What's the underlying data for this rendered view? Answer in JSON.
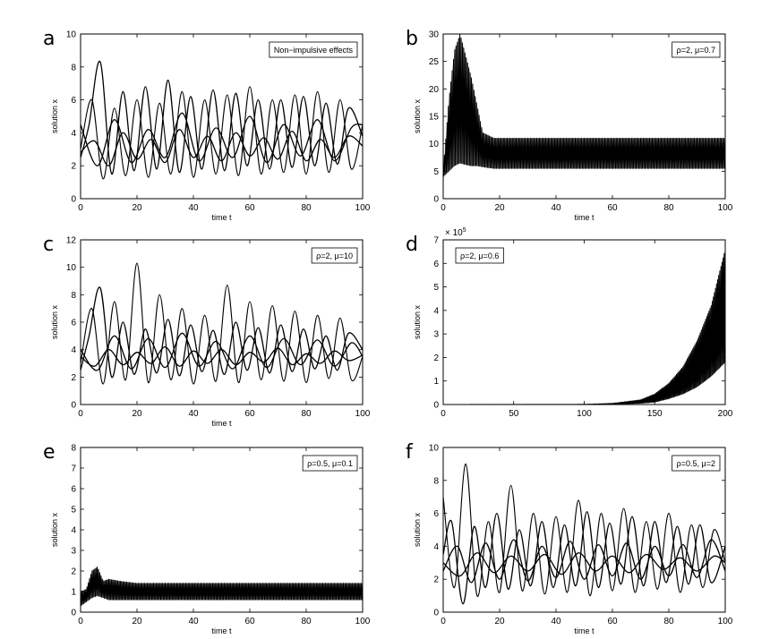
{
  "chart_data": [
    {
      "panel": "a",
      "type": "line",
      "xlabel": "time t",
      "ylabel": "solution x",
      "xlim": [
        0,
        100
      ],
      "ylim": [
        0,
        10
      ],
      "xticks": [
        0,
        20,
        40,
        60,
        80,
        100
      ],
      "yticks": [
        0,
        2,
        4,
        6,
        8,
        10
      ],
      "legend": "Non−impulsive effects",
      "legend_position": "top-right",
      "series": [
        {
          "x": [
            0,
            4,
            8,
            12,
            16,
            20,
            24,
            28,
            32,
            36,
            40,
            44,
            48,
            52,
            56,
            60,
            64,
            68,
            72,
            76,
            80,
            84,
            88,
            92,
            96,
            100
          ],
          "values": [
            3,
            6,
            1.2,
            5.5,
            1.4,
            6,
            1.3,
            5.8,
            1.5,
            6.5,
            1.3,
            6,
            1.5,
            6.3,
            1.4,
            6.8,
            1.5,
            6,
            1.6,
            6.3,
            1.5,
            6.5,
            1.6,
            6,
            1.8,
            4.5
          ]
        },
        {
          "x": [
            0,
            3,
            7,
            11,
            15,
            19,
            23,
            27,
            31,
            35,
            39,
            43,
            47,
            51,
            55,
            59,
            63,
            67,
            71,
            75,
            79,
            83,
            87,
            91,
            95,
            100
          ],
          "values": [
            2.5,
            4.5,
            8.3,
            1.5,
            6.5,
            1.7,
            6.8,
            1.8,
            7.2,
            1.6,
            6.2,
            1.8,
            6.6,
            1.7,
            6.4,
            2,
            6,
            1.8,
            6,
            1.9,
            6.2,
            2,
            5.8,
            2.1,
            5.5,
            3.8
          ]
        },
        {
          "x": [
            0,
            6,
            12,
            18,
            24,
            30,
            36,
            42,
            48,
            54,
            60,
            66,
            72,
            78,
            84,
            90,
            96,
            100
          ],
          "values": [
            4.5,
            2,
            4.8,
            2.2,
            4.2,
            2.5,
            5.2,
            2.3,
            4.3,
            2.5,
            5,
            2.2,
            4.5,
            2.6,
            4.8,
            2.3,
            4.3,
            4.5
          ]
        },
        {
          "x": [
            0,
            5,
            10,
            15,
            20,
            25,
            30,
            35,
            40,
            45,
            50,
            55,
            60,
            65,
            70,
            75,
            80,
            85,
            90,
            95,
            100
          ],
          "values": [
            2.8,
            3.5,
            2,
            4,
            2.4,
            3.6,
            2.2,
            4.2,
            2.5,
            3.8,
            2.3,
            4,
            2.6,
            3.7,
            2.4,
            4.1,
            2.3,
            3.6,
            2.5,
            3.8,
            3.2
          ]
        }
      ]
    },
    {
      "panel": "b",
      "type": "line",
      "xlabel": "time t",
      "ylabel": "solution x",
      "xlim": [
        0,
        100
      ],
      "ylim": [
        0,
        30
      ],
      "xticks": [
        0,
        20,
        40,
        60,
        80,
        100
      ],
      "yticks": [
        0,
        5,
        10,
        15,
        20,
        25,
        30
      ],
      "legend": "ρ=2,  μ=0.7",
      "legend_position": "top-right",
      "series": [
        {
          "x": [
            0,
            2,
            4,
            6,
            8,
            10,
            12,
            14,
            18,
            25,
            40,
            60,
            80,
            100
          ],
          "values": [
            5,
            18,
            27,
            30,
            26,
            22,
            17,
            12,
            11,
            11,
            11,
            11,
            11,
            11
          ]
        },
        {
          "x": [
            0,
            2,
            4,
            6,
            8,
            10,
            12,
            14,
            18,
            25,
            40,
            60,
            80,
            100
          ],
          "values": [
            4,
            5,
            6,
            6.5,
            6.2,
            6,
            6,
            5.8,
            5.5,
            5.5,
            5.5,
            5.5,
            5.5,
            5.5
          ]
        }
      ]
    },
    {
      "panel": "c",
      "type": "line",
      "xlabel": "time t",
      "ylabel": "solution x",
      "xlim": [
        0,
        100
      ],
      "ylim": [
        0,
        12
      ],
      "xticks": [
        0,
        20,
        40,
        60,
        80,
        100
      ],
      "yticks": [
        0,
        2,
        4,
        6,
        8,
        10,
        12
      ],
      "legend": "ρ=2,  μ=10",
      "legend_position": "top-right",
      "series": [
        {
          "x": [
            0,
            4,
            8,
            12,
            16,
            20,
            24,
            28,
            32,
            36,
            40,
            44,
            48,
            52,
            56,
            60,
            64,
            68,
            72,
            76,
            80,
            84,
            88,
            92,
            96,
            100
          ],
          "values": [
            3,
            7,
            1.5,
            7.5,
            1.8,
            10.3,
            1.6,
            8,
            1.8,
            7,
            1.5,
            6.5,
            1.7,
            8.7,
            1.6,
            7.5,
            1.8,
            7.2,
            1.7,
            6.8,
            1.6,
            6.5,
            1.9,
            6.3,
            1.8,
            3.5
          ]
        },
        {
          "x": [
            0,
            3,
            7,
            11,
            15,
            19,
            23,
            27,
            31,
            35,
            39,
            43,
            47,
            51,
            55,
            59,
            63,
            67,
            71,
            75,
            79,
            83,
            87,
            91,
            95,
            100
          ],
          "values": [
            2.5,
            5,
            8.5,
            2,
            6,
            2.2,
            5.5,
            2.3,
            6.2,
            2.1,
            5.8,
            2.4,
            5.4,
            2.2,
            6,
            2.5,
            5.6,
            2.3,
            5.8,
            2.4,
            5.5,
            2.6,
            5,
            2.5,
            5.2,
            4
          ]
        },
        {
          "x": [
            0,
            6,
            12,
            18,
            24,
            30,
            36,
            42,
            48,
            54,
            60,
            66,
            72,
            78,
            84,
            90,
            96,
            100
          ],
          "values": [
            4,
            2.5,
            5,
            2.6,
            4.8,
            2.7,
            5.2,
            2.8,
            4.6,
            2.6,
            5,
            2.7,
            4.8,
            2.9,
            4.7,
            2.8,
            4.5,
            3.5
          ]
        },
        {
          "x": [
            0,
            5,
            10,
            15,
            20,
            25,
            30,
            35,
            40,
            45,
            50,
            55,
            60,
            65,
            70,
            75,
            80,
            85,
            90,
            95,
            100
          ],
          "values": [
            3.5,
            2.8,
            4,
            2.9,
            3.8,
            3,
            4.2,
            2.8,
            3.9,
            3,
            4,
            2.9,
            3.8,
            3.1,
            4.1,
            2.9,
            3.7,
            3,
            3.9,
            3.2,
            3.6
          ]
        }
      ]
    },
    {
      "panel": "d",
      "type": "line",
      "xlabel": "",
      "ylabel": "solution x",
      "y_multiplier": "× 10",
      "y_multiplier_exp": "5",
      "xlim": [
        0,
        200
      ],
      "ylim": [
        0,
        7
      ],
      "xticks": [
        0,
        50,
        100,
        150,
        200
      ],
      "yticks": [
        0,
        1,
        2,
        3,
        4,
        5,
        6,
        7
      ],
      "legend": "ρ=2,  μ=0.6",
      "legend_position": "top-left",
      "series": [
        {
          "x": [
            0,
            100,
            120,
            140,
            150,
            160,
            170,
            180,
            190,
            200
          ],
          "values": [
            0,
            0.01,
            0.05,
            0.2,
            0.45,
            0.9,
            1.6,
            2.7,
            4.2,
            6.6
          ]
        },
        {
          "x": [
            0,
            100,
            120,
            140,
            150,
            160,
            170,
            180,
            190,
            200
          ],
          "values": [
            0,
            0,
            0.01,
            0.05,
            0.1,
            0.25,
            0.45,
            0.75,
            1.2,
            1.8
          ]
        }
      ]
    },
    {
      "panel": "e",
      "type": "line",
      "xlabel": "time t",
      "ylabel": "solution x",
      "xlim": [
        0,
        100
      ],
      "ylim": [
        0,
        8
      ],
      "xticks": [
        0,
        20,
        40,
        60,
        80,
        100
      ],
      "yticks": [
        0,
        1,
        2,
        3,
        4,
        5,
        6,
        7,
        8
      ],
      "legend": "ρ=0.5,  μ=0.1",
      "legend_position": "top-right",
      "series": [
        {
          "x": [
            0,
            2,
            4,
            6,
            8,
            10,
            14,
            20,
            30,
            40,
            50,
            60,
            70,
            80,
            90,
            100
          ],
          "values": [
            1,
            1.1,
            2,
            2.2,
            1.5,
            1.6,
            1.5,
            1.4,
            1.4,
            1.4,
            1.4,
            1.4,
            1.4,
            1.4,
            1.4,
            1.4
          ]
        },
        {
          "x": [
            0,
            2,
            4,
            6,
            8,
            10,
            14,
            20,
            30,
            40,
            50,
            60,
            70,
            80,
            90,
            100
          ],
          "values": [
            0.3,
            0.5,
            0.7,
            0.8,
            0.7,
            0.6,
            0.6,
            0.6,
            0.6,
            0.6,
            0.6,
            0.6,
            0.6,
            0.6,
            0.6,
            0.6
          ]
        }
      ]
    },
    {
      "panel": "f",
      "type": "line",
      "xlabel": "time t",
      "ylabel": "solution x",
      "xlim": [
        0,
        100
      ],
      "ylim": [
        0,
        10
      ],
      "xticks": [
        0,
        20,
        40,
        60,
        80,
        100
      ],
      "yticks": [
        0,
        2,
        4,
        6,
        8,
        10
      ],
      "legend": "ρ=0.5,  μ=2",
      "legend_position": "top-right",
      "series": [
        {
          "x": [
            0,
            4,
            8,
            12,
            16,
            20,
            24,
            28,
            32,
            36,
            40,
            44,
            48,
            52,
            56,
            60,
            64,
            68,
            72,
            76,
            80,
            84,
            88,
            92,
            96,
            100
          ],
          "values": [
            7,
            1.5,
            9,
            1,
            5.5,
            1.2,
            7.7,
            1.3,
            6,
            1.1,
            5.8,
            1.2,
            6.8,
            1,
            6,
            1.3,
            6.3,
            1.2,
            5.5,
            1.4,
            6,
            1.2,
            5.3,
            1.5,
            5,
            3
          ]
        },
        {
          "x": [
            0,
            3,
            7,
            11,
            15,
            19,
            23,
            27,
            31,
            35,
            39,
            43,
            47,
            51,
            55,
            59,
            63,
            67,
            71,
            75,
            79,
            83,
            87,
            91,
            95,
            100
          ],
          "values": [
            3.5,
            5.5,
            0.5,
            5.2,
            1.5,
            6,
            1.4,
            5,
            1.6,
            5.5,
            1.5,
            5.3,
            1.6,
            6.1,
            1.5,
            5.4,
            1.7,
            5.8,
            1.6,
            5.5,
            1.8,
            5.2,
            1.7,
            5.3,
            1.8,
            4
          ]
        },
        {
          "x": [
            0,
            5,
            10,
            15,
            20,
            25,
            30,
            35,
            40,
            45,
            50,
            55,
            60,
            65,
            70,
            75,
            80,
            85,
            90,
            95,
            100
          ],
          "values": [
            2.5,
            4,
            1.8,
            4.2,
            2,
            4.4,
            1.9,
            4,
            2.1,
            4.3,
            2,
            4.1,
            2.2,
            4.2,
            2,
            4,
            2.2,
            4.1,
            2.1,
            4.4,
            2.5
          ]
        },
        {
          "x": [
            0,
            6,
            12,
            18,
            24,
            30,
            36,
            42,
            48,
            54,
            60,
            66,
            72,
            78,
            84,
            90,
            96,
            100
          ],
          "values": [
            3,
            2.2,
            3.6,
            2.4,
            3.4,
            2.5,
            3.5,
            2.3,
            3.6,
            2.5,
            3.4,
            2.4,
            3.5,
            2.6,
            3.3,
            2.5,
            3.4,
            3
          ]
        }
      ]
    }
  ]
}
